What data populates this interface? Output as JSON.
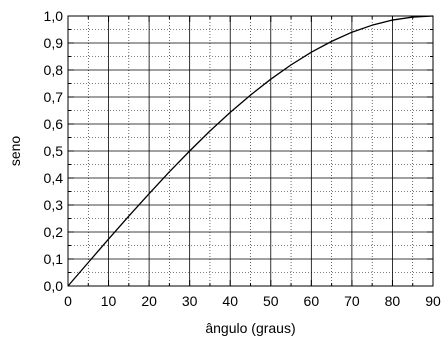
{
  "chart_data": {
    "type": "line",
    "title": "",
    "xlabel": "ângulo (graus)",
    "ylabel": "seno",
    "xlim": [
      0,
      90
    ],
    "ylim": [
      0.0,
      1.0
    ],
    "x_ticks": [
      0,
      10,
      20,
      30,
      40,
      50,
      60,
      70,
      80,
      90
    ],
    "x_tick_labels": [
      "0",
      "10",
      "20",
      "30",
      "40",
      "50",
      "60",
      "70",
      "80",
      "90"
    ],
    "y_ticks": [
      0.0,
      0.1,
      0.2,
      0.3,
      0.4,
      0.5,
      0.6,
      0.7,
      0.8,
      0.9,
      1.0
    ],
    "y_tick_labels": [
      "0,0",
      "0,1",
      "0,2",
      "0,3",
      "0,4",
      "0,5",
      "0,6",
      "0,7",
      "0,8",
      "0,9",
      "1,0"
    ],
    "grid": "major solid, minor dotted",
    "series": [
      {
        "x": [
          0,
          5,
          10,
          15,
          20,
          25,
          30,
          35,
          40,
          45,
          50,
          55,
          60,
          65,
          70,
          75,
          80,
          85,
          90
        ],
        "y": [
          0.0,
          0.087,
          0.174,
          0.259,
          0.342,
          0.423,
          0.5,
          0.574,
          0.643,
          0.707,
          0.766,
          0.819,
          0.866,
          0.906,
          0.94,
          0.966,
          0.985,
          0.996,
          1.0
        ],
        "color": "#000000"
      }
    ]
  }
}
